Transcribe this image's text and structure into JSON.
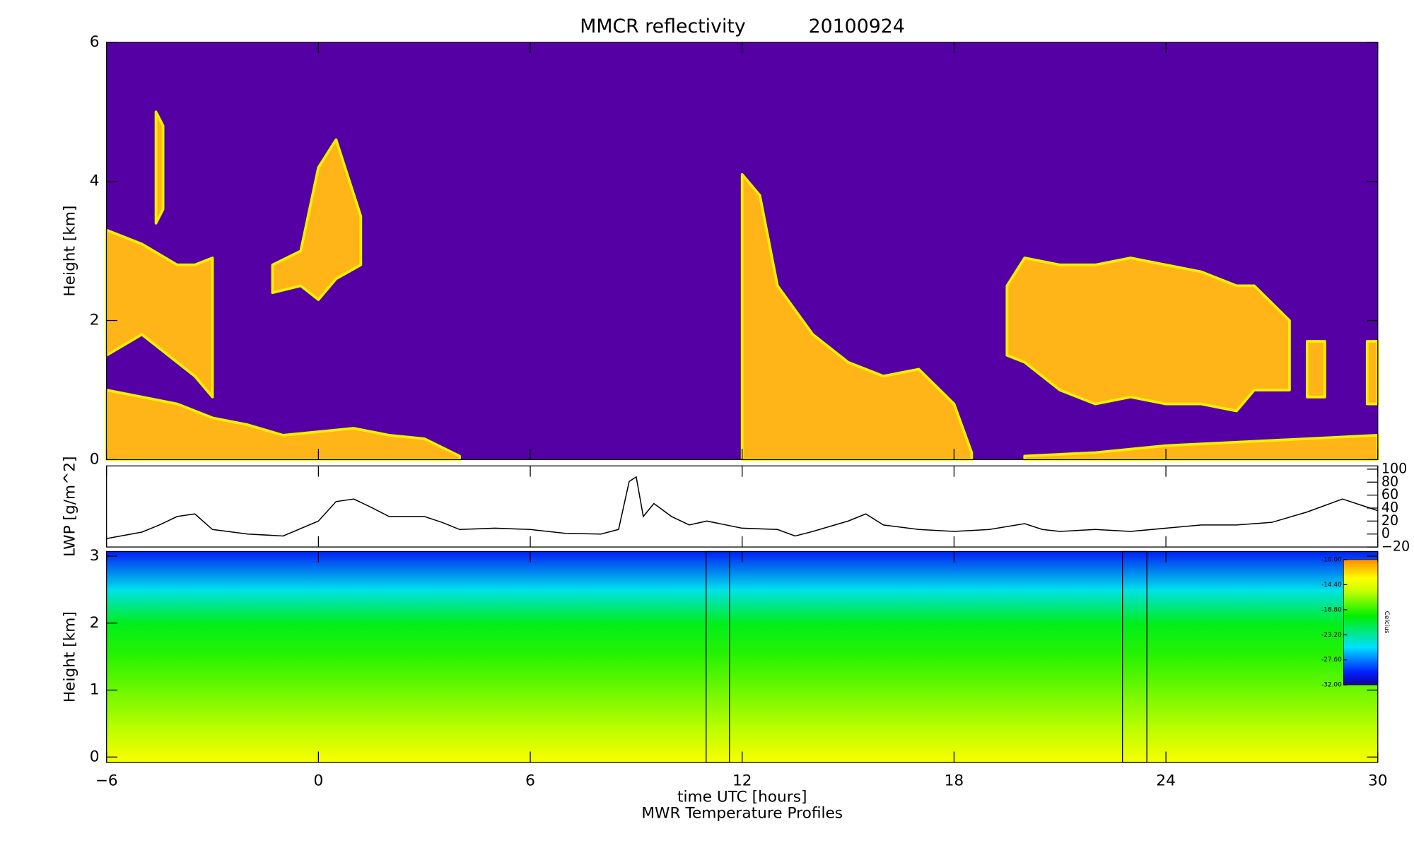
{
  "chart_data": [
    {
      "type": "layered-area",
      "title": "MMCR reflectivity",
      "date": "20100924",
      "ylabel": "Height [km]",
      "background": "#5500a5",
      "color": "#ffb418",
      "edge_color": "#f0f000",
      "xlim": [
        -6,
        30
      ],
      "ylim": [
        0,
        6
      ],
      "yticks": [
        0,
        2,
        4,
        6
      ],
      "layers": [
        {
          "x": [
            -6,
            -5,
            -4,
            -3,
            -2,
            -1,
            0,
            1,
            2,
            3,
            4
          ],
          "base": [
            0,
            0,
            0,
            0,
            0,
            0,
            0,
            0,
            0,
            0,
            0
          ],
          "top": [
            1.0,
            0.9,
            0.8,
            0.6,
            0.5,
            0.35,
            0.4,
            0.45,
            0.35,
            0.3,
            0.05
          ]
        },
        {
          "x": [
            -6,
            -5,
            -4,
            -3.5,
            -3
          ],
          "base": [
            1.5,
            1.8,
            1.4,
            1.2,
            0.9
          ],
          "top": [
            3.3,
            3.1,
            2.8,
            2.8,
            2.9
          ]
        },
        {
          "x": [
            -1.3,
            -0.5,
            0,
            0.5,
            1.2
          ],
          "base": [
            2.4,
            2.5,
            2.3,
            2.6,
            2.8
          ],
          "top": [
            2.8,
            3.0,
            4.2,
            4.6,
            3.5
          ]
        },
        {
          "x": [
            -4.6,
            -4.4
          ],
          "base": [
            3.4,
            3.6
          ],
          "top": [
            5.0,
            4.8
          ]
        },
        {
          "x": [
            12,
            12.5,
            13,
            14,
            15,
            16,
            17,
            18,
            18.5
          ],
          "base": [
            0,
            0,
            0,
            0,
            0,
            0,
            0,
            0,
            0
          ],
          "top": [
            4.1,
            3.8,
            2.5,
            1.8,
            1.4,
            1.2,
            1.3,
            0.8,
            0.1
          ]
        },
        {
          "x": [
            19.5,
            20,
            21,
            22,
            23,
            24,
            25,
            26,
            26.5,
            27.5
          ],
          "base": [
            1.5,
            1.4,
            1.0,
            0.8,
            0.9,
            0.8,
            0.8,
            0.7,
            1.0,
            1.0
          ],
          "top": [
            2.5,
            2.9,
            2.8,
            2.8,
            2.9,
            2.8,
            2.7,
            2.5,
            2.5,
            2.0
          ]
        },
        {
          "x": [
            20,
            22,
            24,
            26,
            28,
            30
          ],
          "base": [
            0,
            0,
            0,
            0,
            0,
            0
          ],
          "top": [
            0.05,
            0.1,
            0.2,
            0.25,
            0.3,
            0.35
          ]
        },
        {
          "x": [
            28,
            28.5
          ],
          "base": [
            0.9,
            0.9
          ],
          "top": [
            1.7,
            1.7
          ]
        },
        {
          "x": [
            29.7,
            30
          ],
          "base": [
            0.8,
            0.8
          ],
          "top": [
            1.7,
            1.7
          ]
        }
      ]
    },
    {
      "type": "line",
      "ylabel": "LWP [g/m^2]",
      "color": "#000000",
      "axis_side": "right",
      "xlim": [
        -6,
        30
      ],
      "ylim": [
        -20,
        105
      ],
      "yticks": [
        {
          "value": -20,
          "label": "−20"
        },
        0,
        20,
        40,
        60,
        80,
        100
      ],
      "x": [
        -6,
        -5,
        -4.5,
        -4,
        -3.5,
        -3,
        -2,
        -1,
        0,
        0.5,
        1,
        1.5,
        2,
        3,
        3.5,
        4,
        5,
        6,
        7,
        8,
        8.5,
        8.8,
        9,
        9.2,
        9.5,
        10,
        10.5,
        11,
        12,
        13,
        13.5,
        14,
        15,
        15.5,
        16,
        17,
        18,
        19,
        20,
        20.5,
        21,
        22,
        23,
        24,
        25,
        26,
        27,
        28,
        29,
        29.5,
        30
      ],
      "values": [
        -7,
        3,
        14,
        27,
        31,
        7,
        0,
        -3,
        20,
        50,
        54,
        41,
        27,
        27,
        18,
        7,
        9,
        7,
        1,
        0,
        7,
        81,
        88,
        27,
        47,
        27,
        14,
        20,
        9,
        7,
        -3,
        4,
        20,
        31,
        14,
        7,
        4,
        7,
        16,
        7,
        4,
        7,
        4,
        9,
        14,
        14,
        18,
        34,
        54,
        45,
        36
      ]
    },
    {
      "type": "profile-heatmap",
      "ylabel": "Height [km]",
      "xlabel": "time UTC [hours]",
      "subtitle": "MWR Temperature Profiles",
      "xlim": [
        -6,
        30
      ],
      "ylim": [
        -0.08,
        3.07
      ],
      "yticks": [
        0,
        1,
        2,
        3
      ],
      "xticks": [
        {
          "value": -6,
          "label": "−6"
        },
        0,
        6,
        12,
        18,
        24,
        30
      ],
      "heights": [
        0,
        0.5,
        1,
        1.5,
        2,
        2.5,
        3
      ],
      "values": [
        -13.5,
        -16,
        -17.5,
        -19,
        -20.5,
        -25,
        -30
      ],
      "missing_intervals": [
        [
          10.98,
          11.64
        ],
        [
          22.77,
          23.46
        ]
      ],
      "colorbar": {
        "label": "Celcius",
        "range": [
          -32,
          -10
        ],
        "ticks": [
          {
            "value": -10,
            "label": "-10.00"
          },
          {
            "value": -14.4,
            "label": "-14.40"
          },
          {
            "value": -18.8,
            "label": "-18.80"
          },
          {
            "value": -23.2,
            "label": "-23.20"
          },
          {
            "value": -27.6,
            "label": "-27.60"
          },
          {
            "value": -32,
            "label": "-32.00"
          }
        ]
      }
    }
  ]
}
